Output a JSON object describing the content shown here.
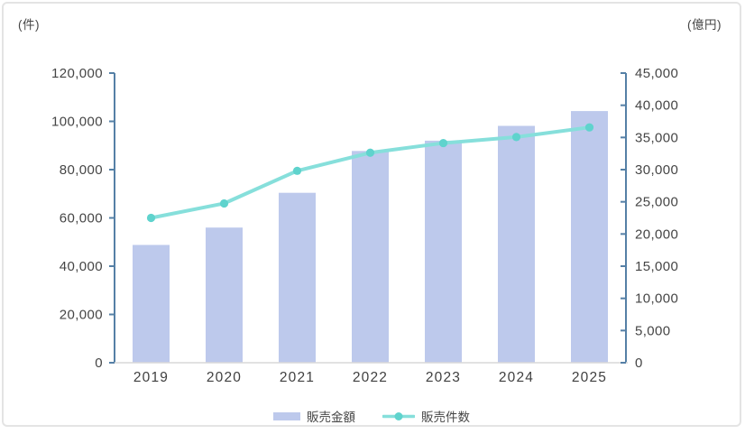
{
  "chart_data": {
    "type": "combo",
    "title": "",
    "categories": [
      "2019",
      "2020",
      "2021",
      "2022",
      "2023",
      "2024",
      "2025"
    ],
    "series": [
      {
        "name": "販売金額",
        "type": "bar",
        "axis": "right",
        "unit": "億円",
        "color": "#BDC9EC",
        "values": [
          18300,
          21000,
          26400,
          32900,
          34500,
          36800,
          39100
        ]
      },
      {
        "name": "販売件数",
        "type": "line",
        "axis": "left",
        "unit": "件",
        "color": "#86DFDB",
        "marker_color": "#5FD3CD",
        "values": [
          60000,
          66000,
          79500,
          87000,
          91000,
          93500,
          97500
        ]
      }
    ],
    "left_axis": {
      "label": "(件)",
      "min": 0,
      "max": 120000,
      "step": 20000
    },
    "right_axis": {
      "label": "(億円)",
      "min": 0,
      "max": 45000,
      "step": 5000
    },
    "legend_position": "bottom",
    "grid": false,
    "styles": {
      "axis_line_color": "#5580A6",
      "baseline_color": "#D9D9D9",
      "tick_label_color": "#454545",
      "category_label_color": "#404040",
      "border_color": "#E4E4E4"
    }
  }
}
